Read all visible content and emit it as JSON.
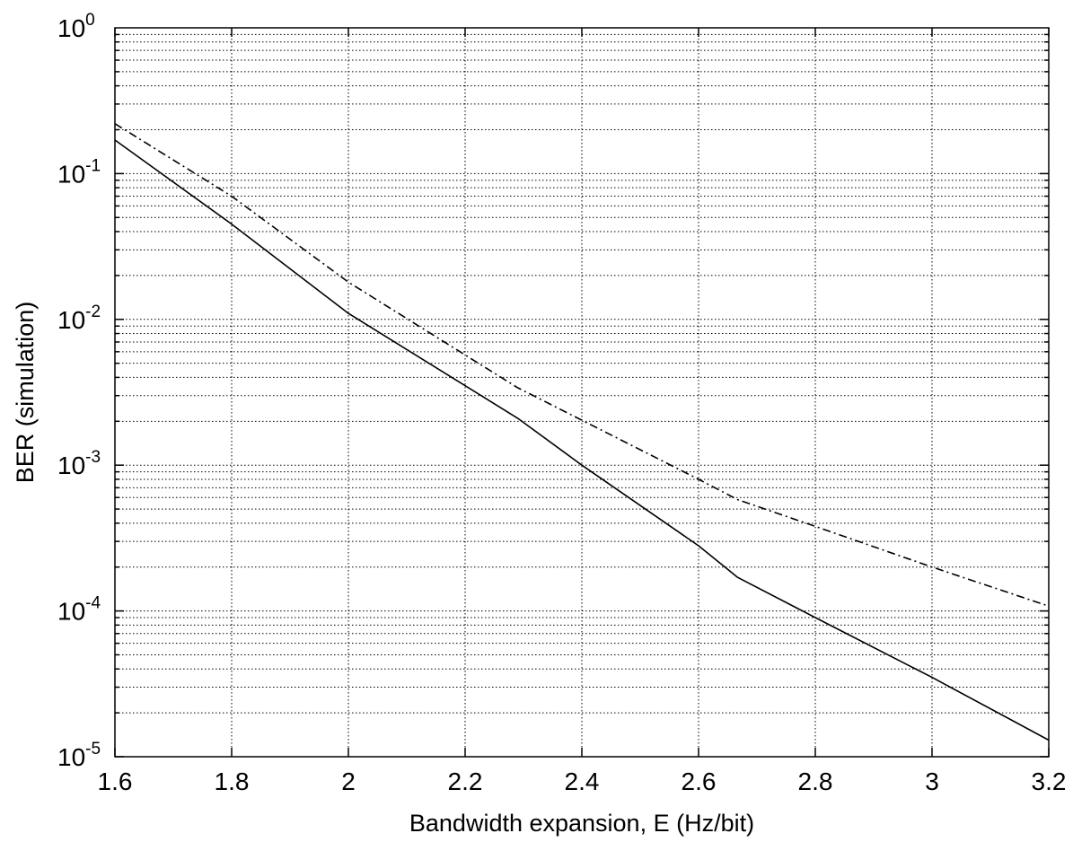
{
  "chart_data": {
    "type": "line",
    "title": "",
    "xlabel": "Bandwidth expansion, E (Hz/bit)",
    "ylabel": "BER (simulation)",
    "xscale": "linear",
    "yscale": "log",
    "xlim": [
      1.6,
      3.2
    ],
    "ylim": [
      1e-05,
      1
    ],
    "xticks": [
      "1.6",
      "1.8",
      "2",
      "2.2",
      "2.4",
      "2.6",
      "2.8",
      "3",
      "3.2"
    ],
    "yticks": [
      {
        "base": "10",
        "exp": "-5"
      },
      {
        "base": "10",
        "exp": "-4"
      },
      {
        "base": "10",
        "exp": "-3"
      },
      {
        "base": "10",
        "exp": "-2"
      },
      {
        "base": "10",
        "exp": "-1"
      },
      {
        "base": "10",
        "exp": "0"
      }
    ],
    "grid": true,
    "legend": "none",
    "series": [
      {
        "style": "solid",
        "color": "#000000",
        "x": [
          1.6,
          1.8,
          2.0,
          2.29,
          2.4,
          2.6,
          2.667,
          2.8,
          3.0,
          3.2
        ],
        "y": [
          0.17,
          0.045,
          0.011,
          0.0021,
          0.001,
          0.00028,
          0.00017,
          9e-05,
          3.5e-05,
          1.3e-05
        ]
      },
      {
        "style": "dash-dot",
        "color": "#000000",
        "x": [
          1.6,
          1.8,
          2.0,
          2.29,
          2.6,
          2.667,
          2.8,
          3.0,
          3.2
        ],
        "y": [
          0.22,
          0.07,
          0.018,
          0.0034,
          0.0008,
          0.00058,
          0.00038,
          0.0002,
          0.000108
        ]
      }
    ]
  }
}
